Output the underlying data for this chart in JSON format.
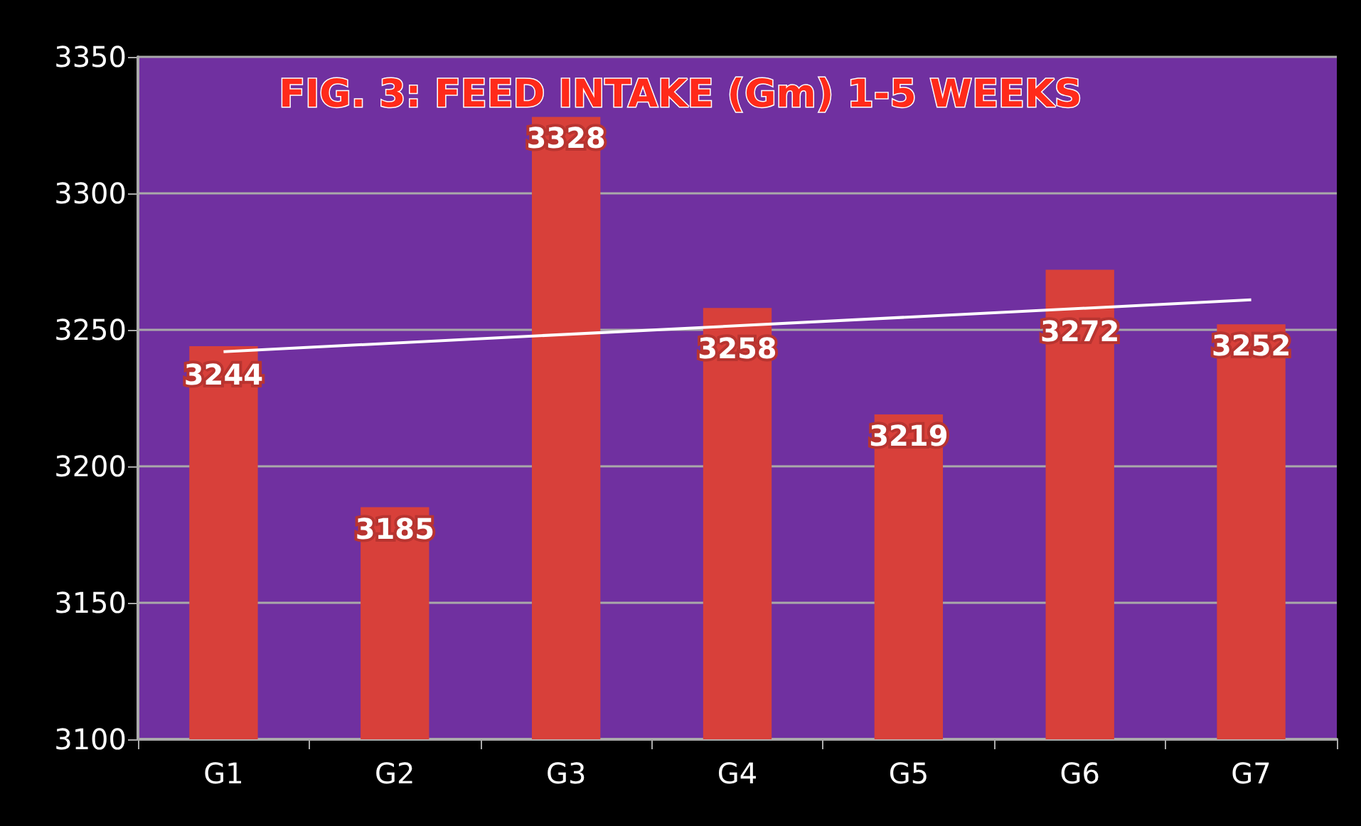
{
  "chart_data": {
    "type": "bar",
    "title": "FIG. 3: FEED INTAKE (Gm) 1-5 WEEKS",
    "categories": [
      "G1",
      "G2",
      "G3",
      "G4",
      "G5",
      "G6",
      "G7"
    ],
    "series": [
      {
        "color": "#d8403a",
        "values": [
          3244,
          3185,
          3328,
          3258,
          3219,
          3272,
          3252
        ],
        "value_labels": [
          "3244",
          "3185",
          "3328",
          "3258",
          "3219",
          "3272",
          "3252"
        ]
      },
      {
        "type": "line",
        "color": "#ffffff",
        "x": [
          "G1",
          "G7"
        ],
        "values": [
          3242,
          3261
        ]
      }
    ],
    "ylim": [
      3100,
      3350
    ],
    "yticks": [
      3100,
      3150,
      3200,
      3250,
      3300,
      3350
    ],
    "grid": "y",
    "marker": "none",
    "line_style": "solid"
  }
}
